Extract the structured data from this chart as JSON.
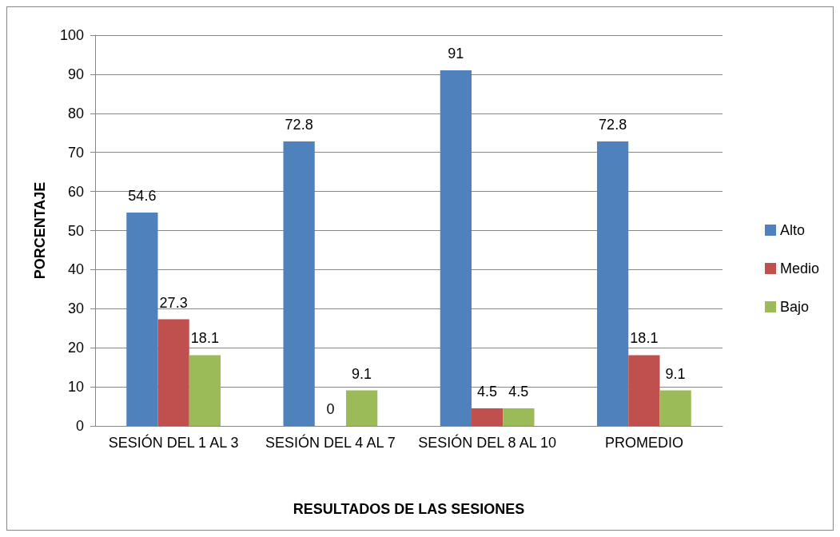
{
  "chart_data": {
    "type": "bar",
    "xlabel": "RESULTADOS DE LAS SESIONES",
    "ylabel": "PORCENTAJE",
    "categories": [
      "SESIÓN DEL 1 AL 3",
      "SESIÓN DEL 4 AL 7",
      "SESIÓN DEL 8 AL 10",
      "PROMEDIO"
    ],
    "series": [
      {
        "name": "Alto",
        "color": "#4f81bd",
        "values": [
          54.6,
          72.8,
          91,
          72.8
        ]
      },
      {
        "name": "Medio",
        "color": "#c0504d",
        "values": [
          27.3,
          0,
          4.5,
          18.1
        ]
      },
      {
        "name": "Bajo",
        "color": "#9bbb59",
        "values": [
          18.1,
          9.1,
          4.5,
          9.1
        ]
      }
    ],
    "ylim": [
      0,
      100
    ],
    "yticks": [
      0,
      10,
      20,
      30,
      40,
      50,
      60,
      70,
      80,
      90,
      100
    ],
    "grid": "y",
    "legend": "right",
    "data_labels": true
  }
}
